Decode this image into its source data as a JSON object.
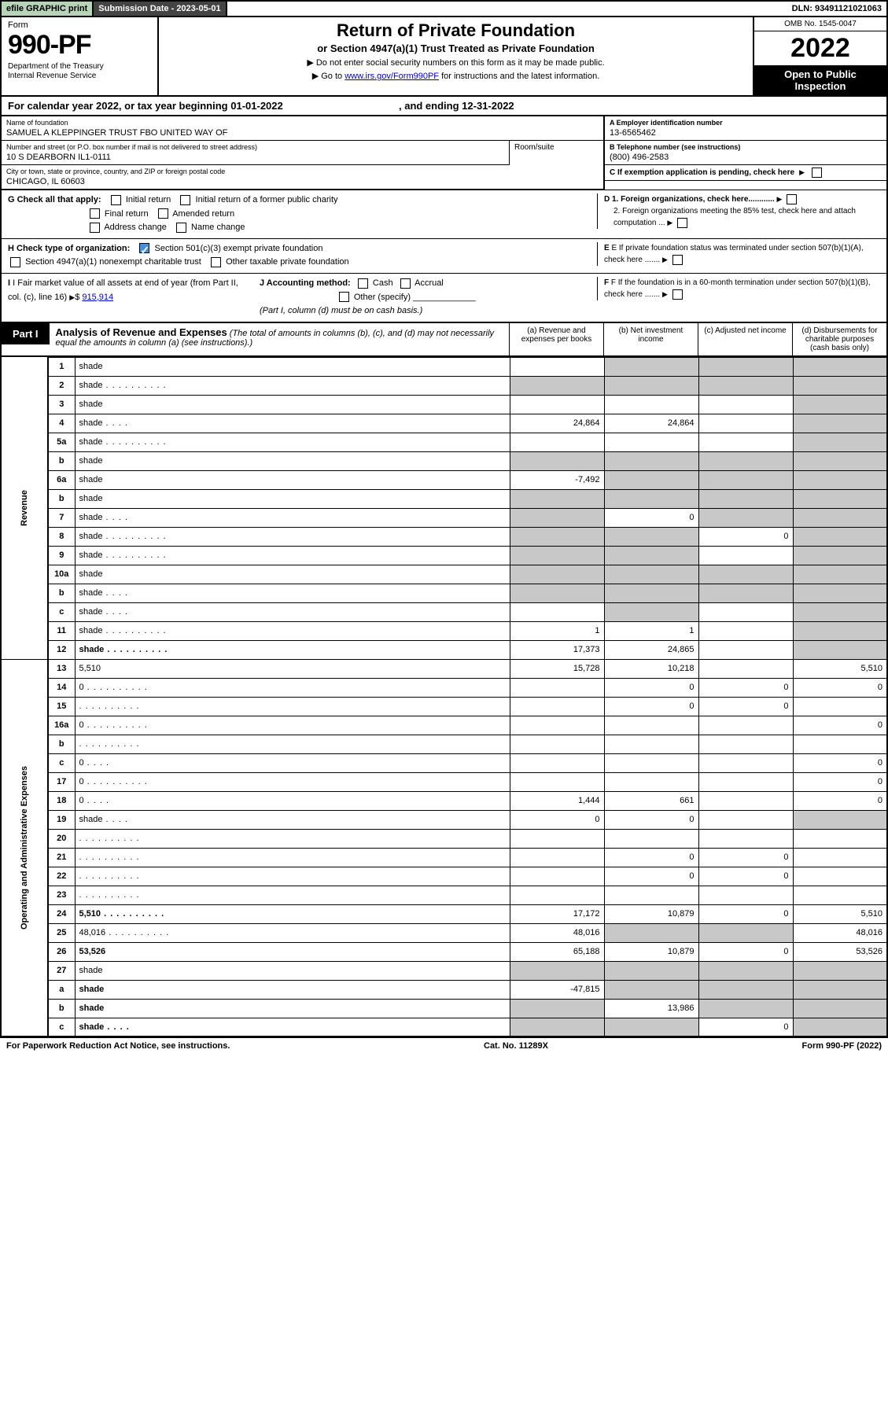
{
  "topbar": {
    "efile": "efile GRAPHIC print",
    "submission": "Submission Date - 2023-05-01",
    "dln": "DLN: 93491121021063"
  },
  "header": {
    "form_word": "Form",
    "form_num": "990-PF",
    "dept": "Department of the Treasury\nInternal Revenue Service",
    "title": "Return of Private Foundation",
    "subtitle": "or Section 4947(a)(1) Trust Treated as Private Foundation",
    "note1": "▶ Do not enter social security numbers on this form as it may be made public.",
    "note2_pre": "▶ Go to ",
    "note2_link": "www.irs.gov/Form990PF",
    "note2_post": " for instructions and the latest information.",
    "omb": "OMB No. 1545-0047",
    "year": "2022",
    "open": "Open to Public Inspection"
  },
  "period": {
    "text_pre": "For calendar year 2022, or tax year beginning ",
    "begin": "01-01-2022",
    "text_mid": " , and ending ",
    "end": "12-31-2022"
  },
  "info": {
    "name_lbl": "Name of foundation",
    "name_val": "SAMUEL A KLEPPINGER TRUST FBO UNITED WAY OF",
    "addr_lbl": "Number and street (or P.O. box number if mail is not delivered to street address)",
    "addr_val": "10 S DEARBORN IL1-0111",
    "room_lbl": "Room/suite",
    "city_lbl": "City or town, state or province, country, and ZIP or foreign postal code",
    "city_val": "CHICAGO, IL  60603",
    "a_lbl": "A Employer identification number",
    "a_val": "13-6565462",
    "b_lbl": "B Telephone number (see instructions)",
    "b_val": "(800) 496-2583",
    "c_lbl": "C If exemption application is pending, check here"
  },
  "checks": {
    "g_lbl": "G Check all that apply:",
    "g_opts": [
      "Initial return",
      "Initial return of a former public charity",
      "Final return",
      "Amended return",
      "Address change",
      "Name change"
    ],
    "h_lbl": "H Check type of organization:",
    "h_opt1": "Section 501(c)(3) exempt private foundation",
    "h_opt2": "Section 4947(a)(1) nonexempt charitable trust",
    "h_opt3": "Other taxable private foundation",
    "i_lbl": "I Fair market value of all assets at end of year (from Part II, col. (c), line 16)",
    "i_val": "915,914",
    "j_lbl": "J Accounting method:",
    "j_opts": [
      "Cash",
      "Accrual",
      "Other (specify)"
    ],
    "j_note": "(Part I, column (d) must be on cash basis.)",
    "d1": "D 1. Foreign organizations, check here............",
    "d2": "2. Foreign organizations meeting the 85% test, check here and attach computation ...",
    "e": "E  If private foundation status was terminated under section 507(b)(1)(A), check here .......",
    "f": "F  If the foundation is in a 60-month termination under section 507(b)(1)(B), check here ......."
  },
  "part1": {
    "tag": "Part I",
    "title": "Analysis of Revenue and Expenses",
    "note": " (The total of amounts in columns (b), (c), and (d) may not necessarily equal the amounts in column (a) (see instructions).)",
    "col_a": "(a) Revenue and expenses per books",
    "col_b": "(b) Net investment income",
    "col_c": "(c) Adjusted net income",
    "col_d": "(d) Disbursements for charitable purposes (cash basis only)"
  },
  "side": {
    "rev": "Revenue",
    "exp": "Operating and Administrative Expenses"
  },
  "rows": [
    {
      "n": "1",
      "d": "shade",
      "a": "",
      "b": "shade",
      "c": "shade"
    },
    {
      "n": "2",
      "d": "shade",
      "dots": true,
      "a": "shade",
      "b": "shade",
      "c": "shade"
    },
    {
      "n": "3",
      "d": "shade",
      "a": "",
      "b": "",
      "c": ""
    },
    {
      "n": "4",
      "d": "shade",
      "dots": "s",
      "a": "24,864",
      "b": "24,864",
      "c": ""
    },
    {
      "n": "5a",
      "d": "shade",
      "dots": true,
      "a": "",
      "b": "",
      "c": ""
    },
    {
      "n": "b",
      "d": "shade",
      "a": "shade",
      "b": "shade",
      "c": "shade"
    },
    {
      "n": "6a",
      "d": "shade",
      "a": "-7,492",
      "b": "shade",
      "c": "shade"
    },
    {
      "n": "b",
      "d": "shade",
      "a": "shade",
      "b": "shade",
      "c": "shade"
    },
    {
      "n": "7",
      "d": "shade",
      "dots": "s",
      "a": "shade",
      "b": "0",
      "c": "shade"
    },
    {
      "n": "8",
      "d": "shade",
      "dots": true,
      "a": "shade",
      "b": "shade",
      "c": "0"
    },
    {
      "n": "9",
      "d": "shade",
      "dots": true,
      "a": "shade",
      "b": "shade",
      "c": ""
    },
    {
      "n": "10a",
      "d": "shade",
      "a": "shade",
      "b": "shade",
      "c": "shade"
    },
    {
      "n": "b",
      "d": "shade",
      "dots": "s",
      "a": "shade",
      "b": "shade",
      "c": "shade"
    },
    {
      "n": "c",
      "d": "shade",
      "dots": "s",
      "a": "",
      "b": "shade",
      "c": ""
    },
    {
      "n": "11",
      "d": "shade",
      "dots": true,
      "a": "1",
      "b": "1",
      "c": ""
    },
    {
      "n": "12",
      "d": "shade",
      "dots": true,
      "bold": true,
      "a": "17,373",
      "b": "24,865",
      "c": ""
    },
    {
      "n": "13",
      "d": "5,510",
      "a": "15,728",
      "b": "10,218",
      "c": "",
      "sec": "exp"
    },
    {
      "n": "14",
      "d": "0",
      "dots": true,
      "a": "",
      "b": "0",
      "c": "0"
    },
    {
      "n": "15",
      "d": "",
      "dots": true,
      "a": "",
      "b": "0",
      "c": "0"
    },
    {
      "n": "16a",
      "d": "0",
      "dots": true,
      "a": "",
      "b": "",
      "c": ""
    },
    {
      "n": "b",
      "d": "",
      "dots": true,
      "a": "",
      "b": "",
      "c": ""
    },
    {
      "n": "c",
      "d": "0",
      "dots": "s",
      "a": "",
      "b": "",
      "c": ""
    },
    {
      "n": "17",
      "d": "0",
      "dots": true,
      "a": "",
      "b": "",
      "c": ""
    },
    {
      "n": "18",
      "d": "0",
      "dots": "s",
      "a": "1,444",
      "b": "661",
      "c": ""
    },
    {
      "n": "19",
      "d": "shade",
      "dots": "s",
      "a": "0",
      "b": "0",
      "c": ""
    },
    {
      "n": "20",
      "d": "",
      "dots": true,
      "a": "",
      "b": "",
      "c": ""
    },
    {
      "n": "21",
      "d": "",
      "dots": true,
      "a": "",
      "b": "0",
      "c": "0"
    },
    {
      "n": "22",
      "d": "",
      "dots": true,
      "a": "",
      "b": "0",
      "c": "0"
    },
    {
      "n": "23",
      "d": "",
      "dots": true,
      "a": "",
      "b": "",
      "c": ""
    },
    {
      "n": "24",
      "d": "5,510",
      "dots": true,
      "bold": true,
      "a": "17,172",
      "b": "10,879",
      "c": "0"
    },
    {
      "n": "25",
      "d": "48,016",
      "dots": true,
      "a": "48,016",
      "b": "shade",
      "c": "shade"
    },
    {
      "n": "26",
      "d": "53,526",
      "bold": true,
      "a": "65,188",
      "b": "10,879",
      "c": "0"
    },
    {
      "n": "27",
      "d": "shade",
      "a": "shade",
      "b": "shade",
      "c": "shade"
    },
    {
      "n": "a",
      "d": "shade",
      "bold": true,
      "a": "-47,815",
      "b": "shade",
      "c": "shade"
    },
    {
      "n": "b",
      "d": "shade",
      "bold": true,
      "a": "shade",
      "b": "13,986",
      "c": "shade"
    },
    {
      "n": "c",
      "d": "shade",
      "dots": "s",
      "bold": true,
      "a": "shade",
      "b": "shade",
      "c": "0"
    }
  ],
  "footer": {
    "left": "For Paperwork Reduction Act Notice, see instructions.",
    "mid": "Cat. No. 11289X",
    "right": "Form 990-PF (2022)"
  },
  "colors": {
    "shade": "#c8c8c8",
    "efile_bg": "#b8d4b8",
    "link": "#0000cc",
    "checked": "#4a90d9"
  }
}
